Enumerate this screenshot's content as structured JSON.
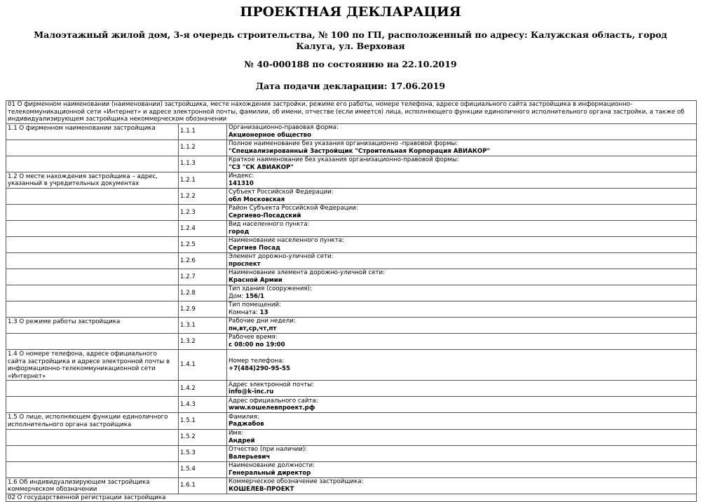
{
  "title": "ПРОЕКТНАЯ ДЕКЛАРАЦИЯ",
  "subtitle": "Малоэтажный жилой дом, 3-я очередь строительства, № 100 по ГП, расположенный по адресу: Калужская область, город Калуга, ул. Верховая",
  "number": "№ 40-000188 по состоянию на 22.10.2019",
  "submission_date": "Дата подачи декларации: 17.06.2019",
  "section_01": "01 О фирменном наименовании (наименовании) застройщика, месте нахождения застройки, режиме его работы, номере телефона, адресе официального сайта застройщика в информационно-телекоммуникационной сети «Интернет» и адресе электронной почты, фамилии, об имени, отчестве (если имеется) лица, исполняющего функции единоличного исполнительного органа застройки, а также об индивидуализирующем застройщика некоммерческом обозначении",
  "rows": [
    {
      "group": "1.1 О фирменном наименовании застройщика",
      "code": "1.1.1",
      "label": "Организационно-правовая форма:",
      "prefix": "",
      "value": "Акционерное общество"
    },
    {
      "group": "",
      "code": "1.1.2",
      "label": "Полное наименование без указания организационно -правовой формы:",
      "prefix": "",
      "value": "\"Специализированный Застройщик \"Строительная Корпорация АВИАКОР\""
    },
    {
      "group": "",
      "code": "1.1.3",
      "label": "Краткое наименование без указания организационно-правовой формы:",
      "prefix": "",
      "value": "\"СЗ \"СК АВИАКОР\""
    },
    {
      "group": "1.2 О месте нахождения застройщика – адрес, указанный в учредительных документах",
      "code": "1.2.1",
      "label": "Индекс:",
      "prefix": "",
      "value": "141310"
    },
    {
      "group": "",
      "code": "1.2.2",
      "label": "Субъект Российской Федерации:",
      "prefix": "",
      "value": "обл Московская"
    },
    {
      "group": "",
      "code": "1.2.3",
      "label": "Район Субъекта Российской Федерации:",
      "prefix": "",
      "value": "Сергиево-Посадский"
    },
    {
      "group": "",
      "code": "1.2.4",
      "label": "Вид населенного пункта:",
      "prefix": "",
      "value": "город"
    },
    {
      "group": "",
      "code": "1.2.5",
      "label": "Наименование населенного пункта:",
      "prefix": "",
      "value": "Сергиев Посад"
    },
    {
      "group": "",
      "code": "1.2.6",
      "label": "Элемент дорожно-уличной сети:",
      "prefix": "",
      "value": "проспект"
    },
    {
      "group": "",
      "code": "1.2.7",
      "label": "Наименование элемента дорожно-уличной сети:",
      "prefix": "",
      "value": "Красной Армии"
    },
    {
      "group": "",
      "code": "1.2.8",
      "label": "Тип здания (сооружения):",
      "prefix": "Дом: ",
      "value": "156/1"
    },
    {
      "group": "",
      "code": "1.2.9",
      "label": "Тип помещений:",
      "prefix": "Комната: ",
      "value": "13"
    },
    {
      "group": "1.3 О режиме работы застройщика",
      "code": "1.3.1",
      "label": "Рабочие дни недели:",
      "prefix": "",
      "value": "пн,вт,ср,чт,пт"
    },
    {
      "group": "",
      "code": "1.3.2",
      "label": "Рабочее время:",
      "prefix": "",
      "value": "с 08:00 по 19:00"
    },
    {
      "group": "1.4 О номере телефона, адресе официального сайта застройщика и адресе электронной почты в информационно-телекоммуникационной сети «Интернет»",
      "code": "1.4.1",
      "label": "Номер телефона:",
      "prefix": "",
      "value": "+7(484)290-95-55"
    },
    {
      "group": "",
      "code": "1.4.2",
      "label": "Адрес электронной почты:",
      "prefix": "",
      "value": "info@k-inc.ru"
    },
    {
      "group": "",
      "code": "1.4.3",
      "label": "Адрес официального сайта:",
      "prefix": "",
      "value": "www.кошелевпроект.рф"
    },
    {
      "group": "1.5 О лице, исполняющем функции единоличного исполнительного органа застройщика",
      "code": "1.5.1",
      "label": "Фамилия:",
      "prefix": "",
      "value": "Раджабов"
    },
    {
      "group": "",
      "code": "1.5.2",
      "label": "Имя:",
      "prefix": "",
      "value": "Андрей"
    },
    {
      "group": "",
      "code": "1.5.3",
      "label": "Отчество (при наличии):",
      "prefix": "",
      "value": "Валерьевич"
    },
    {
      "group": "",
      "code": "1.5.4",
      "label": "Наименование должности:",
      "prefix": "",
      "value": "Генеральный директор"
    },
    {
      "group": "1.6 Об индивидуализирующем застройщика коммерческом обозначении",
      "code": "1.6.1",
      "label": "Коммерческое обозначение застройщика:",
      "prefix": "",
      "value": "КОШЕЛЕВ-ПРОЕКТ"
    }
  ],
  "section_02": "02 О государственной регистрации застройщика"
}
